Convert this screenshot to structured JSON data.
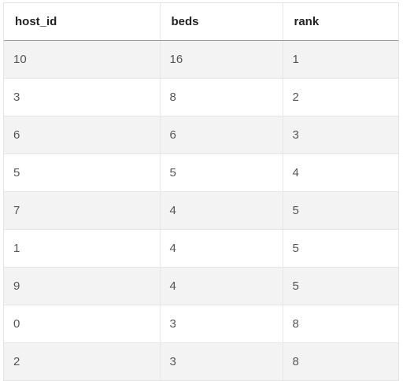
{
  "table": {
    "columns": [
      "host_id",
      "beds",
      "rank"
    ],
    "rows": [
      [
        "10",
        "16",
        "1"
      ],
      [
        "3",
        "8",
        "2"
      ],
      [
        "6",
        "6",
        "3"
      ],
      [
        "5",
        "5",
        "4"
      ],
      [
        "7",
        "4",
        "5"
      ],
      [
        "1",
        "4",
        "5"
      ],
      [
        "9",
        "4",
        "5"
      ],
      [
        "0",
        "3",
        "8"
      ],
      [
        "2",
        "3",
        "8"
      ]
    ]
  }
}
